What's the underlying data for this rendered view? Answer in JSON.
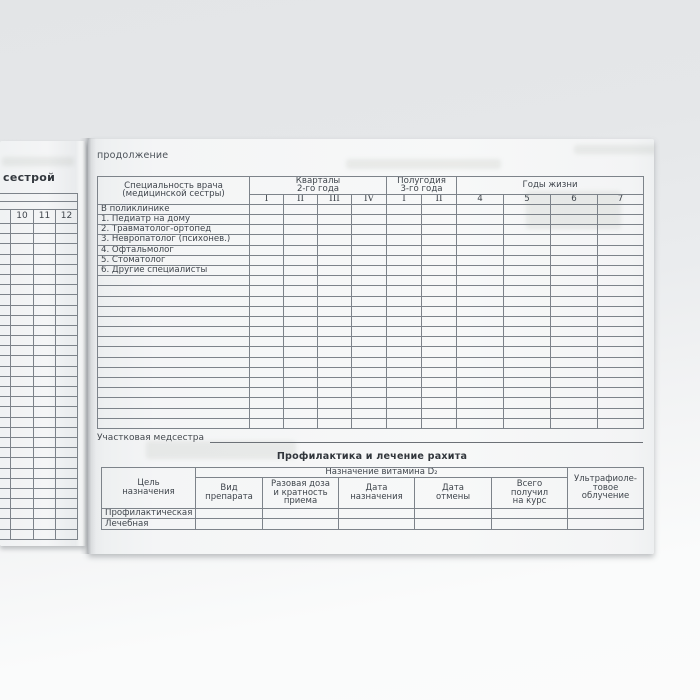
{
  "left_page": {
    "heading_fragment": "сестрой",
    "number_columns": [
      "10",
      "11",
      "12"
    ],
    "empty_grid_row_count": 31
  },
  "right_page": {
    "continuation_label": "продолжение",
    "specialists_table": {
      "specialty_header": "Специальность врача\n(медицинской сестры)",
      "quarters_header": "Кварталы\n2-го года",
      "halfyears_header": "Полугодия\n3-го года",
      "years_header": "Годы жизни",
      "quarter_columns": [
        "I",
        "II",
        "III",
        "IV"
      ],
      "halfyear_columns": [
        "I",
        "II"
      ],
      "year_columns": [
        "4",
        "5",
        "6",
        "7"
      ],
      "row_labels": [
        "В поликлинике",
        "1. Педиатр на дому",
        "2. Травматолог-ортопед",
        "3. Невропатолог (психонев.)",
        "4. Офтальмолог",
        "5. Стоматолог",
        "6. Другие специалисты"
      ],
      "empty_row_count": 15
    },
    "nurse_label": "Участковая медсестра",
    "rickets_table": {
      "title": "Профилактика и лечение рахита",
      "vitamin_group_header": "Назначение витамина D₂",
      "purpose_header": "Цель\nназначения",
      "drug_header": "Вид\nпрепарата",
      "dose_header": "Разовая доза\nи кратность\nприема",
      "date_assigned_header": "Дата\nназначения",
      "date_cancelled_header": "Дата\nотмены",
      "total_header": "Всего\nполучил\nна курс",
      "uv_header": "Ультрафиоле-\nтовое\nоблучение",
      "row_labels": [
        "Профилактическая",
        "Лечебная"
      ]
    }
  }
}
